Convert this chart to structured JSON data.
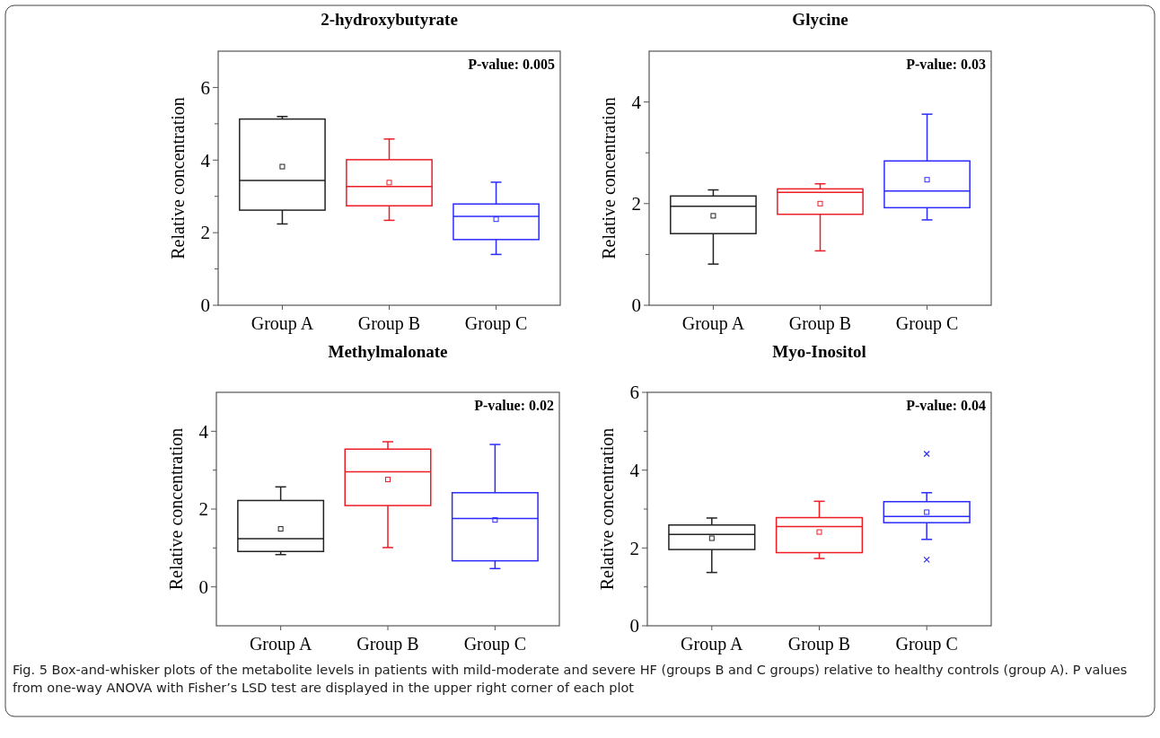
{
  "chart_data": [
    {
      "type": "box",
      "title": "2-hydroxybutyrate",
      "ylabel": "Relative concentration",
      "categories": [
        "Group A",
        "Group B",
        "Group C"
      ],
      "colors": [
        "#222222",
        "#ee1c25",
        "#2b2bff"
      ],
      "ylim": [
        0,
        7
      ],
      "yticks": [
        0,
        {
          "value": 1,
          "label": null
        },
        2,
        {
          "value": 3,
          "label": null
        },
        4,
        {
          "value": 5,
          "label": null
        },
        6
      ],
      "annotations": [
        "P-value: 0.005"
      ],
      "boxes": [
        {
          "low": 2.24,
          "q1": 2.62,
          "median": 3.44,
          "q3": 5.13,
          "high": 5.2,
          "mean": 3.82
        },
        {
          "low": 2.34,
          "q1": 2.74,
          "median": 3.27,
          "q3": 4.01,
          "high": 4.58,
          "mean": 3.38
        },
        {
          "low": 1.4,
          "q1": 1.81,
          "median": 2.45,
          "q3": 2.79,
          "high": 3.39,
          "mean": 2.37
        }
      ]
    },
    {
      "type": "box",
      "title": "Glycine",
      "ylabel": "Relative concentration",
      "categories": [
        "Group A",
        "Group B",
        "Group C"
      ],
      "colors": [
        "#222222",
        "#ee1c25",
        "#2b2bff"
      ],
      "ylim": [
        0,
        5
      ],
      "yticks": [
        0,
        {
          "value": 1,
          "label": null
        },
        2,
        {
          "value": 3,
          "label": null
        },
        4
      ],
      "annotations": [
        "P-value: 0.03"
      ],
      "boxes": [
        {
          "low": 0.81,
          "q1": 1.41,
          "median": 1.95,
          "q3": 2.15,
          "high": 2.27,
          "mean": 1.76
        },
        {
          "low": 1.07,
          "q1": 1.79,
          "median": 2.22,
          "q3": 2.29,
          "high": 2.39,
          "mean": 2.0
        },
        {
          "low": 1.68,
          "q1": 1.92,
          "median": 2.25,
          "q3": 2.84,
          "high": 3.76,
          "mean": 2.47
        }
      ]
    },
    {
      "type": "box",
      "title": "Methylmalonate",
      "ylabel": "Relative concentration",
      "categories": [
        "Group A",
        "Group B",
        "Group C"
      ],
      "colors": [
        "#222222",
        "#ee1c25",
        "#2b2bff"
      ],
      "ylim": [
        -1,
        5
      ],
      "yticks": [
        0,
        {
          "value": 1,
          "label": null
        },
        2,
        {
          "value": 3,
          "label": null
        },
        4
      ],
      "annotations": [
        "P-value: 0.02"
      ],
      "boxes": [
        {
          "low": 0.83,
          "q1": 0.91,
          "median": 1.24,
          "q3": 2.22,
          "high": 2.57,
          "mean": 1.49
        },
        {
          "low": 1.01,
          "q1": 2.09,
          "median": 2.96,
          "q3": 3.54,
          "high": 3.73,
          "mean": 2.76
        },
        {
          "low": 0.47,
          "q1": 0.67,
          "median": 1.76,
          "q3": 2.42,
          "high": 3.66,
          "mean": 1.72
        }
      ]
    },
    {
      "type": "box",
      "title": "Myo-Inositol",
      "ylabel": "Relative concentration",
      "categories": [
        "Group A",
        "Group B",
        "Group C"
      ],
      "colors": [
        "#222222",
        "#ee1c25",
        "#2b2bff"
      ],
      "ylim": [
        0,
        6
      ],
      "yticks": [
        0,
        {
          "value": 1,
          "label": null
        },
        2,
        {
          "value": 3,
          "label": null
        },
        4,
        {
          "value": 5,
          "label": null
        },
        6
      ],
      "annotations": [
        "P-value: 0.04",
        "Fig. 5  Box-and-whisker plots of the metabolite levels in patients with mild-moderate and severe HF (groups B and C groups) relative to healthy controls (group A). P values from one-way ANOVA with Fisher’s LSD test are displayed in the upper right corner of each plot"
      ],
      "boxes": [
        {
          "low": 1.37,
          "q1": 1.96,
          "median": 2.35,
          "q3": 2.59,
          "high": 2.77,
          "mean": 2.25
        },
        {
          "low": 1.73,
          "q1": 1.88,
          "median": 2.55,
          "q3": 2.78,
          "high": 3.2,
          "mean": 2.41
        },
        {
          "low": 2.22,
          "q1": 2.65,
          "median": 2.81,
          "q3": 3.19,
          "high": 3.42,
          "mean": 2.92,
          "outliers": [
            4.42,
            1.7
          ]
        }
      ]
    }
  ]
}
